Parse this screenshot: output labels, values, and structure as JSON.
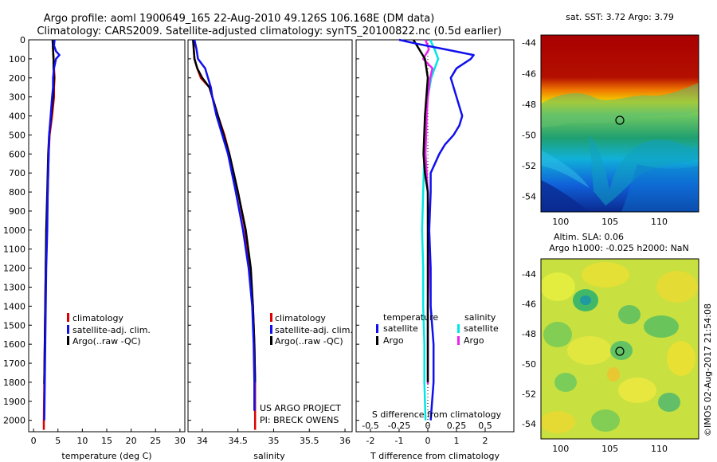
{
  "title": {
    "line1": "Argo profile: aoml 1900649_165 22-Aug-2010 49.126S 106.168E (DM data)",
    "line2": "Climatology: CARS2009. Satellite-adjusted climatology: synTS_20100822.nc (0.5d earlier)"
  },
  "colors": {
    "climatology": "#dd0000",
    "satellite": "#1010ee",
    "argo": "#000000",
    "salinity_satellite": "#00e5e5",
    "salinity_argo": "#ee22ee"
  },
  "depth_axis": {
    "ylim": [
      2060,
      0
    ],
    "ticks": [
      "0",
      "100",
      "200",
      "300",
      "400",
      "500",
      "600",
      "700",
      "800",
      "900",
      "1000",
      "1100",
      "1200",
      "1300",
      "1400",
      "1500",
      "1600",
      "1700",
      "1800",
      "1900",
      "2000"
    ]
  },
  "project": {
    "line1": "US ARGO PROJECT",
    "line2": "PI: BRECK OWENS"
  },
  "timestamp": "©IMOS 02-Aug-2017 21:54:08",
  "chart_data": [
    {
      "type": "line",
      "xlabel": "temperature (deg C)",
      "ylabel": "",
      "xlim": [
        -1,
        31
      ],
      "xticks": [
        "0",
        "5",
        "10",
        "15",
        "20",
        "25",
        "30"
      ],
      "legend": [
        "climatology",
        "satellite-adj. clim.",
        "Argo(..raw -QC)"
      ],
      "series": [
        {
          "name": "climatology",
          "depth": [
            0,
            50,
            100,
            150,
            200,
            250,
            300,
            400,
            500,
            600,
            800,
            1000,
            1200,
            1400,
            1600,
            1800,
            2000,
            2050
          ],
          "values": [
            4.0,
            4.0,
            4.1,
            4.2,
            4.3,
            4.2,
            4.2,
            3.8,
            3.3,
            3.1,
            2.9,
            2.7,
            2.5,
            2.4,
            2.3,
            2.2,
            2.1,
            2.1
          ]
        },
        {
          "name": "satellite-adj. clim.",
          "depth": [
            0,
            30,
            60,
            80,
            100,
            150,
            200,
            250,
            300,
            400,
            500,
            600,
            800,
            1000,
            1200,
            1400,
            1600,
            1800,
            2000
          ],
          "values": [
            4.3,
            4.2,
            4.6,
            5.3,
            4.6,
            4.2,
            4.0,
            4.0,
            3.8,
            3.5,
            3.2,
            3.1,
            2.9,
            2.8,
            2.6,
            2.5,
            2.4,
            2.3,
            2.2
          ]
        },
        {
          "name": "Argo(..raw -QC)",
          "depth": [
            0,
            50,
            100,
            150,
            200,
            250,
            300,
            400,
            500,
            600,
            800,
            1000,
            1200,
            1400,
            1600,
            1800,
            1810
          ],
          "values": [
            3.9,
            4.0,
            4.1,
            4.1,
            4.2,
            4.1,
            4.0,
            3.6,
            3.2,
            3.0,
            2.8,
            2.6,
            2.5,
            2.4,
            2.3,
            2.2,
            2.2
          ]
        }
      ]
    },
    {
      "type": "line",
      "xlabel": "salinity",
      "ylabel": "",
      "xlim": [
        33.8,
        36.1
      ],
      "xticks": [
        "34",
        "34.5",
        "35",
        "35.5",
        "36"
      ],
      "legend": [
        "climatology",
        "satellite-adj. clim.",
        "Argo(..raw -QC)"
      ],
      "series": [
        {
          "name": "climatology",
          "depth": [
            0,
            50,
            100,
            150,
            200,
            250,
            300,
            400,
            500,
            600,
            800,
            1000,
            1200,
            1400,
            1600,
            1800,
            2000,
            2050
          ],
          "values": [
            33.88,
            33.88,
            33.89,
            33.93,
            33.98,
            34.1,
            34.14,
            34.22,
            34.31,
            34.38,
            34.5,
            34.6,
            34.67,
            34.71,
            34.73,
            34.74,
            34.74,
            34.74
          ]
        },
        {
          "name": "satellite-adj. clim.",
          "depth": [
            0,
            50,
            100,
            150,
            200,
            250,
            300,
            400,
            500,
            600,
            800,
            1000,
            1200,
            1400,
            1600,
            1800,
            1950
          ],
          "values": [
            33.89,
            33.92,
            33.94,
            34.04,
            34.08,
            34.12,
            34.14,
            34.2,
            34.28,
            34.36,
            34.47,
            34.57,
            34.65,
            34.7,
            34.72,
            34.73,
            34.73
          ]
        },
        {
          "name": "Argo(..raw -QC)",
          "depth": [
            0,
            50,
            100,
            150,
            200,
            250,
            300,
            400,
            500,
            600,
            800,
            1000,
            1200,
            1400,
            1600,
            1800
          ],
          "values": [
            33.87,
            33.88,
            33.89,
            33.93,
            34.0,
            34.1,
            34.14,
            34.22,
            34.3,
            34.38,
            34.5,
            34.61,
            34.68,
            34.71,
            34.73,
            34.74
          ]
        }
      ]
    },
    {
      "type": "line",
      "xlabel": "T difference from climatology",
      "xlabel_top": "S difference from climatology",
      "xlim": [
        -2.5,
        3.0
      ],
      "xticks": [
        "-2",
        "-1",
        "0",
        "1",
        "2"
      ],
      "xticks_top": [
        "-0.5",
        "-0.25",
        "0",
        "0.25",
        "0.5"
      ],
      "legend_headers": [
        "temperature",
        "salinity"
      ],
      "legend": [
        "satellite",
        "Argo",
        "satellite",
        "Argo"
      ],
      "series": [
        {
          "name": "satellite",
          "depth": [
            0,
            20,
            50,
            80,
            100,
            150,
            200,
            250,
            300,
            350,
            400,
            450,
            500,
            550,
            600,
            700,
            800,
            1000,
            1200,
            1400,
            1600,
            1800,
            2000
          ],
          "values": [
            -1.0,
            -0.4,
            0.6,
            1.6,
            1.5,
            1.0,
            0.8,
            0.9,
            1.0,
            1.1,
            1.2,
            1.1,
            0.9,
            0.6,
            0.4,
            0.1,
            0.1,
            0.05,
            0.1,
            0.1,
            0.2,
            0.2,
            0.1
          ]
        },
        {
          "name": "Argo",
          "depth": [
            0,
            50,
            100,
            150,
            200,
            400,
            600,
            700,
            800,
            1200,
            1700,
            1800
          ],
          "values": [
            -0.5,
            -0.3,
            -0.1,
            -0.05,
            0.0,
            -0.1,
            -0.15,
            -0.1,
            0.0,
            0.0,
            0.0,
            0.0
          ]
        },
        {
          "name": "satellite",
          "depth": [
            0,
            50,
            100,
            150,
            200,
            300,
            400,
            600,
            800,
            1000,
            1200,
            1400,
            1600,
            1800,
            2000
          ],
          "values": [
            0.02,
            0.06,
            0.09,
            0.06,
            0.03,
            0.0,
            -0.02,
            -0.03,
            -0.04,
            -0.05,
            -0.04,
            -0.04,
            -0.03,
            -0.03,
            -0.02
          ]
        },
        {
          "name": "Argo",
          "depth": [
            0,
            50,
            100,
            150,
            200,
            300,
            400,
            600,
            800,
            1000,
            1200,
            1400,
            1600,
            1800,
            1810
          ],
          "values": [
            -0.02,
            0.01,
            -0.04,
            0.04,
            0.02,
            0.0,
            -0.01,
            -0.02,
            0.0,
            0.01,
            0.01,
            0.0,
            0.0,
            0.0,
            0.0
          ]
        }
      ]
    },
    {
      "type": "heatmap",
      "title": "sat. SST: 3.72 Argo: 3.79",
      "xlim": [
        98,
        114
      ],
      "ylim": [
        -55,
        -43.5
      ],
      "xticks": [
        "100",
        "105",
        "110"
      ],
      "yticks": [
        "-44",
        "-46",
        "-48",
        "-50",
        "-52",
        "-54"
      ],
      "marker": {
        "lon": 106.168,
        "lat": -49.126
      }
    },
    {
      "type": "heatmap",
      "title": "Altim. SLA: 0.06",
      "subtitle": "Argo h1000: -0.025 h2000: NaN",
      "xlim": [
        98,
        114
      ],
      "ylim": [
        -55,
        -43
      ],
      "xticks": [
        "100",
        "105",
        "110"
      ],
      "yticks": [
        "-44",
        "-46",
        "-48",
        "-50",
        "-52",
        "-54"
      ],
      "marker": {
        "lon": 106.168,
        "lat": -49.126
      }
    }
  ]
}
